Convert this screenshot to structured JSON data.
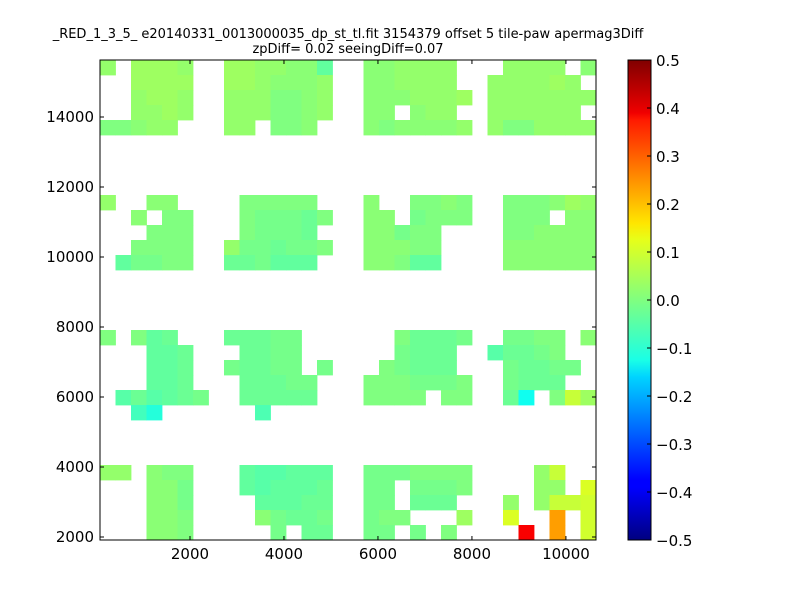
{
  "chart_data": {
    "type": "heatmap",
    "title": [
      "_RED_1_3_5_ e20140331_0013000035_dp_st_tl.fit 3154379 offset 5 tile-paw apermag3Diff",
      "zpDiff= 0.02 seeingDiff=0.07"
    ],
    "xlabel": "",
    "ylabel": "",
    "xlim": [
      85,
      10640
    ],
    "ylim": [
      1914,
      15629
    ],
    "xticks": [
      2000,
      4000,
      6000,
      8000,
      10000
    ],
    "xtick_labels": [
      "2000",
      "4000",
      "6000",
      "8000",
      "10000"
    ],
    "yticks": [
      2000,
      4000,
      6000,
      8000,
      10000,
      12000,
      14000
    ],
    "ytick_labels": [
      "2000",
      "4000",
      "6000",
      "8000",
      "10000",
      "12000",
      "14000"
    ],
    "colormap": "jet",
    "clim": [
      -0.5,
      0.5
    ],
    "colorbar_ticks": [
      0.5,
      0.4,
      0.3,
      0.2,
      0.1,
      0.0,
      -0.1,
      -0.2,
      -0.3,
      -0.4,
      -0.5
    ],
    "colorbar_labels": [
      "0.5",
      "0.4",
      "0.3",
      "0.2",
      "0.1",
      "0.0",
      "−0.1",
      "−0.2",
      "−0.3",
      "−0.4",
      "−0.5"
    ],
    "grid_rows_top_to_bottom": [
      [
        0.02,
        null,
        0.03,
        0.03,
        0.03,
        0.02,
        null,
        null,
        0.03,
        0.03,
        0.02,
        0.02,
        0.01,
        0.01,
        -0.03,
        null,
        null,
        0.01,
        0.01,
        0.02,
        0.02,
        0.02,
        0.02,
        null,
        null,
        null,
        0.02,
        0.02,
        0.02,
        0.02,
        null,
        0.01
      ],
      [
        null,
        null,
        0.03,
        0.03,
        0.03,
        0.03,
        null,
        null,
        0.03,
        0.03,
        0.02,
        0.01,
        0.01,
        0.01,
        0.02,
        null,
        null,
        0.01,
        0.01,
        0.02,
        0.02,
        0.02,
        0.02,
        null,
        null,
        0.02,
        0.02,
        0.02,
        0.02,
        0.03,
        0.02,
        null
      ],
      [
        null,
        null,
        0.02,
        0.03,
        0.03,
        0.02,
        null,
        null,
        0.02,
        0.02,
        0.02,
        0.0,
        0.0,
        0.01,
        0.02,
        null,
        null,
        0.01,
        0.01,
        0.01,
        0.02,
        0.02,
        0.02,
        0.03,
        null,
        0.02,
        0.02,
        0.02,
        0.02,
        0.02,
        0.02,
        0.02
      ],
      [
        null,
        null,
        0.02,
        0.02,
        0.03,
        0.02,
        null,
        null,
        0.02,
        0.02,
        0.02,
        0.0,
        0.0,
        0.01,
        0.02,
        null,
        null,
        0.01,
        0.01,
        null,
        0.01,
        0.02,
        0.02,
        null,
        null,
        0.02,
        0.02,
        0.02,
        0.02,
        0.02,
        0.02,
        null
      ],
      [
        0.0,
        0.0,
        0.01,
        0.02,
        0.02,
        null,
        null,
        null,
        0.02,
        0.02,
        null,
        0.0,
        0.0,
        0.01,
        null,
        null,
        null,
        0.01,
        0.0,
        0.01,
        0.01,
        0.01,
        0.01,
        0.02,
        null,
        0.02,
        0.0,
        0.0,
        0.02,
        0.02,
        0.02,
        0.02
      ],
      [
        null,
        null,
        null,
        null,
        null,
        null,
        null,
        null,
        null,
        null,
        null,
        null,
        null,
        null,
        null,
        null,
        null,
        null,
        null,
        null,
        null,
        null,
        null,
        null,
        null,
        null,
        null,
        null,
        null,
        null,
        null,
        null
      ],
      [
        null,
        null,
        null,
        null,
        null,
        null,
        null,
        null,
        null,
        null,
        null,
        null,
        null,
        null,
        null,
        null,
        null,
        null,
        null,
        null,
        null,
        null,
        null,
        null,
        null,
        null,
        null,
        null,
        null,
        null,
        null,
        null
      ],
      [
        null,
        null,
        null,
        null,
        null,
        null,
        null,
        null,
        null,
        null,
        null,
        null,
        null,
        null,
        null,
        null,
        null,
        null,
        null,
        null,
        null,
        null,
        null,
        null,
        null,
        null,
        null,
        null,
        null,
        null,
        null,
        null
      ],
      [
        null,
        null,
        null,
        null,
        null,
        null,
        null,
        null,
        null,
        null,
        null,
        null,
        null,
        null,
        null,
        null,
        null,
        null,
        null,
        null,
        null,
        null,
        null,
        null,
        null,
        null,
        null,
        null,
        null,
        null,
        null,
        null
      ],
      [
        0.02,
        null,
        null,
        0.01,
        0.01,
        null,
        null,
        null,
        null,
        0.0,
        0.0,
        0.0,
        0.0,
        0.0,
        null,
        null,
        null,
        0.01,
        null,
        null,
        0.0,
        0.0,
        0.01,
        0.0,
        null,
        null,
        0.0,
        0.0,
        0.0,
        0.01,
        0.03,
        0.02
      ],
      [
        null,
        null,
        0.01,
        null,
        0.0,
        0.0,
        null,
        null,
        null,
        0.0,
        -0.01,
        -0.01,
        -0.01,
        -0.02,
        0.0,
        null,
        null,
        0.01,
        0.01,
        null,
        -0.01,
        0.0,
        0.0,
        0.0,
        null,
        null,
        0.0,
        0.0,
        0.0,
        null,
        0.01,
        0.01
      ],
      [
        null,
        null,
        null,
        0.0,
        0.0,
        0.0,
        null,
        null,
        null,
        0.0,
        -0.01,
        -0.01,
        -0.01,
        -0.02,
        null,
        null,
        null,
        0.01,
        0.01,
        -0.01,
        0.0,
        0.0,
        null,
        null,
        null,
        null,
        0.0,
        0.0,
        0.01,
        0.01,
        0.01,
        0.01
      ],
      [
        null,
        null,
        0.0,
        0.0,
        0.0,
        0.0,
        null,
        null,
        0.02,
        -0.01,
        -0.01,
        -0.02,
        -0.01,
        -0.01,
        0.0,
        null,
        null,
        0.01,
        0.01,
        0.01,
        0.0,
        0.0,
        null,
        null,
        null,
        null,
        0.01,
        0.01,
        0.01,
        0.01,
        0.01,
        0.01
      ],
      [
        null,
        -0.03,
        -0.01,
        -0.01,
        0.0,
        0.0,
        null,
        null,
        -0.02,
        -0.02,
        -0.01,
        -0.03,
        -0.03,
        -0.03,
        null,
        null,
        null,
        0.01,
        0.01,
        0.0,
        -0.03,
        -0.03,
        null,
        null,
        null,
        null,
        0.01,
        0.01,
        0.01,
        0.01,
        0.01,
        0.01
      ],
      [
        null,
        null,
        null,
        null,
        null,
        null,
        null,
        null,
        null,
        null,
        null,
        null,
        null,
        null,
        null,
        null,
        null,
        null,
        null,
        null,
        null,
        null,
        null,
        null,
        null,
        null,
        null,
        null,
        null,
        null,
        null,
        null
      ],
      [
        null,
        null,
        null,
        null,
        null,
        null,
        null,
        null,
        null,
        null,
        null,
        null,
        null,
        null,
        null,
        null,
        null,
        null,
        null,
        null,
        null,
        null,
        null,
        null,
        null,
        null,
        null,
        null,
        null,
        null,
        null,
        null
      ],
      [
        null,
        null,
        null,
        null,
        null,
        null,
        null,
        null,
        null,
        null,
        null,
        null,
        null,
        null,
        null,
        null,
        null,
        null,
        null,
        null,
        null,
        null,
        null,
        null,
        null,
        null,
        null,
        null,
        null,
        null,
        null,
        null
      ],
      [
        null,
        null,
        null,
        null,
        null,
        null,
        null,
        null,
        null,
        null,
        null,
        null,
        null,
        null,
        null,
        null,
        null,
        null,
        null,
        null,
        null,
        null,
        null,
        null,
        null,
        null,
        null,
        null,
        null,
        null,
        null,
        null
      ],
      [
        0.0,
        null,
        0.0,
        -0.03,
        -0.02,
        null,
        null,
        null,
        -0.02,
        -0.02,
        -0.02,
        -0.01,
        -0.01,
        null,
        null,
        null,
        null,
        null,
        null,
        0.0,
        -0.02,
        -0.02,
        -0.02,
        -0.01,
        null,
        null,
        -0.01,
        -0.01,
        0.0,
        0.0,
        null,
        0.01
      ],
      [
        null,
        null,
        null,
        -0.03,
        -0.03,
        -0.02,
        null,
        null,
        null,
        -0.02,
        -0.02,
        -0.01,
        -0.01,
        null,
        null,
        null,
        null,
        null,
        null,
        -0.01,
        -0.02,
        -0.02,
        -0.02,
        null,
        null,
        -0.04,
        -0.02,
        -0.02,
        -0.01,
        0.0,
        null,
        null
      ],
      [
        null,
        null,
        null,
        -0.03,
        -0.03,
        -0.02,
        null,
        null,
        -0.01,
        -0.02,
        -0.02,
        -0.01,
        -0.01,
        null,
        -0.01,
        null,
        null,
        null,
        0.0,
        -0.01,
        -0.02,
        -0.02,
        -0.02,
        null,
        null,
        null,
        -0.01,
        -0.02,
        -0.02,
        -0.01,
        -0.01,
        null
      ],
      [
        null,
        null,
        null,
        -0.03,
        -0.03,
        -0.02,
        null,
        null,
        null,
        -0.02,
        -0.02,
        -0.02,
        -0.01,
        -0.01,
        null,
        null,
        null,
        0.0,
        0.0,
        0.0,
        -0.01,
        -0.01,
        -0.01,
        0.0,
        null,
        null,
        -0.01,
        -0.02,
        -0.02,
        -0.02,
        null,
        null
      ],
      [
        null,
        -0.04,
        -0.02,
        -0.04,
        -0.03,
        -0.02,
        -0.01,
        null,
        null,
        -0.02,
        -0.02,
        -0.02,
        -0.02,
        -0.02,
        null,
        null,
        null,
        0.0,
        0.0,
        0.0,
        0.0,
        null,
        0.0,
        0.0,
        null,
        null,
        -0.02,
        -0.11,
        null,
        0.0,
        0.07,
        0.03
      ],
      [
        null,
        null,
        -0.06,
        -0.09,
        null,
        null,
        null,
        null,
        null,
        null,
        -0.05,
        null,
        null,
        null,
        null,
        null,
        null,
        null,
        null,
        null,
        null,
        null,
        null,
        null,
        null,
        null,
        null,
        null,
        null,
        null,
        null,
        null
      ],
      [
        null,
        null,
        null,
        null,
        null,
        null,
        null,
        null,
        null,
        null,
        null,
        null,
        null,
        null,
        null,
        null,
        null,
        null,
        null,
        null,
        null,
        null,
        null,
        null,
        null,
        null,
        null,
        null,
        null,
        null,
        null,
        null
      ],
      [
        null,
        null,
        null,
        null,
        null,
        null,
        null,
        null,
        null,
        null,
        null,
        null,
        null,
        null,
        null,
        null,
        null,
        null,
        null,
        null,
        null,
        null,
        null,
        null,
        null,
        null,
        null,
        null,
        null,
        null,
        null,
        null
      ],
      [
        null,
        null,
        null,
        null,
        null,
        null,
        null,
        null,
        null,
        null,
        null,
        null,
        null,
        null,
        null,
        null,
        null,
        null,
        null,
        null,
        null,
        null,
        null,
        null,
        null,
        null,
        null,
        null,
        null,
        null,
        null,
        null
      ],
      [
        0.02,
        0.02,
        null,
        0.01,
        0.0,
        0.0,
        null,
        null,
        null,
        -0.03,
        -0.04,
        -0.04,
        -0.03,
        -0.03,
        -0.03,
        null,
        null,
        -0.01,
        -0.01,
        -0.01,
        0.0,
        0.0,
        0.0,
        0.0,
        null,
        null,
        null,
        null,
        0.02,
        0.07,
        null,
        null
      ],
      [
        null,
        null,
        null,
        0.01,
        0.01,
        -0.01,
        null,
        null,
        null,
        -0.03,
        -0.04,
        -0.03,
        -0.03,
        -0.03,
        -0.02,
        null,
        null,
        -0.01,
        -0.01,
        null,
        -0.01,
        -0.01,
        -0.01,
        0.0,
        null,
        null,
        null,
        null,
        0.02,
        0.02,
        null,
        0.09
      ],
      [
        null,
        null,
        null,
        0.01,
        0.01,
        -0.01,
        null,
        null,
        null,
        null,
        -0.03,
        -0.03,
        -0.03,
        -0.02,
        -0.02,
        null,
        null,
        -0.01,
        -0.01,
        null,
        -0.02,
        -0.02,
        -0.02,
        null,
        null,
        null,
        0.02,
        null,
        0.02,
        0.07,
        0.07,
        0.08
      ],
      [
        null,
        null,
        null,
        0.01,
        0.01,
        0.0,
        null,
        null,
        null,
        null,
        0.01,
        -0.01,
        -0.02,
        -0.02,
        -0.01,
        null,
        null,
        -0.01,
        0.0,
        0.0,
        null,
        null,
        null,
        0.03,
        null,
        null,
        0.09,
        null,
        null,
        0.22,
        null,
        0.08
      ],
      [
        null,
        null,
        null,
        0.01,
        0.01,
        0.0,
        null,
        null,
        null,
        null,
        null,
        -0.01,
        null,
        -0.02,
        -0.02,
        null,
        null,
        -0.01,
        -0.01,
        null,
        -0.01,
        null,
        0.0,
        null,
        null,
        null,
        null,
        0.38,
        null,
        0.22,
        null,
        0.08
      ]
    ]
  }
}
